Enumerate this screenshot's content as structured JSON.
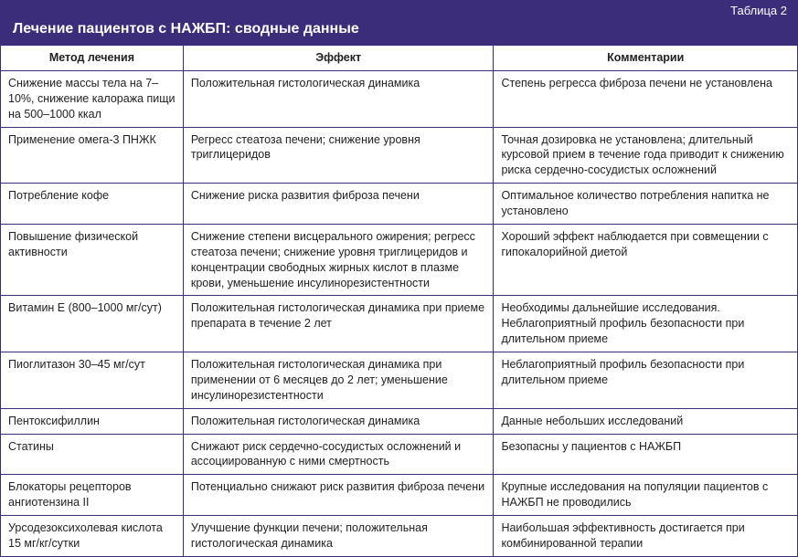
{
  "table_label": "Таблица 2",
  "title": "Лечение пациентов с НАЖБП: сводные данные",
  "colors": {
    "header_bg": "#3b2d7a",
    "header_text": "#ffffff",
    "border": "#3b2d7a",
    "cell_bg": "#ffffff",
    "cell_text": "#222222"
  },
  "columns": [
    "Метод лечения",
    "Эффект",
    "Комментарии"
  ],
  "rows": [
    [
      "Снижение массы тела на 7–10%, снижение калоража пищи на 500–1000 ккал",
      "Положительная гистологическая динамика",
      "Степень регресса фиброза печени не установлена"
    ],
    [
      "Применение омега-3 ПНЖК",
      "Регресс стеатоза печени; снижение уровня триглицеридов",
      "Точная дозировка не установлена; длительный курсовой прием в течение года приводит к снижению риска сердечно-сосудистых осложнений"
    ],
    [
      "Потребление кофе",
      "Снижение риска развития фиброза печени",
      "Оптимальное количество потребления напитка не установлено"
    ],
    [
      "Повышение физической активности",
      "Снижение степени висцерального ожирения; регресс стеатоза печени; снижение уровня триглицеридов и концентрации свободных жирных кислот в плазме крови, уменьшение инсулинорезистентности",
      "Хороший эффект наблюдается при совмещении с гипокалорийной диетой"
    ],
    [
      "Витамин Е (800–1000 мг/сут)",
      "Положительная гистологическая динамика при приеме препарата в течение 2 лет",
      "Необходимы дальнейшие исследования. Неблагоприятный профиль безопасности при длительном приеме"
    ],
    [
      "Пиоглитазон 30–45 мг/сут",
      "Положительная гистологическая динамика при применении от 6 месяцев до 2 лет; уменьшение инсулинорезистентности",
      "Неблагоприятный профиль безопасности при длительном приеме"
    ],
    [
      "Пентоксифиллин",
      "Положительная гистологическая динамика",
      "Данные небольших исследований"
    ],
    [
      "Статины",
      "Снижают риск сердечно-сосудистых осложнений и ассоциированную с ними смертность",
      "Безопасны у пациентов с НАЖБП"
    ],
    [
      "Блокаторы рецепторов ангиотензина II",
      "Потенциально снижают риск развития фиброза печени",
      "Крупные исследования на популяции пациентов с НАЖБП не проводились"
    ],
    [
      "Урсодезоксихолевая кислота 15 мг/кг/сутки",
      "Улучшение функции печени; положительная гистологическая динамика",
      "Наибольшая эффективность достигается при комбинированной терапии"
    ]
  ]
}
